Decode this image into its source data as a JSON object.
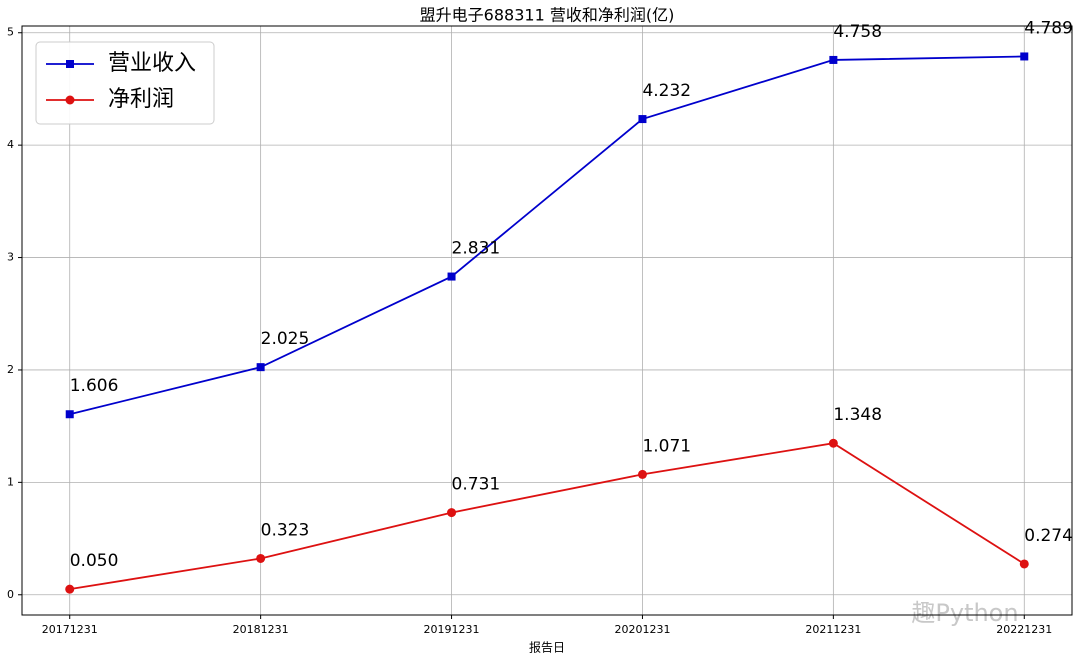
{
  "chart_data": {
    "type": "line",
    "title": "盟升电子688311 营收和净利润(亿)",
    "x_label": "报告日",
    "categories": [
      "20171231",
      "20181231",
      "20191231",
      "20201231",
      "20211231",
      "20221231"
    ],
    "series": [
      {
        "name": "营业收入",
        "color": "#0000cc",
        "marker": "square",
        "values": [
          1.606,
          2.025,
          2.831,
          4.232,
          4.758,
          4.789
        ],
        "value_labels": [
          "1.606",
          "2.025",
          "2.831",
          "4.232",
          "4.758",
          "4.789"
        ]
      },
      {
        "name": "净利润",
        "color": "#dd1111",
        "marker": "circle",
        "values": [
          0.05,
          0.323,
          0.731,
          1.071,
          1.348,
          0.274
        ],
        "value_labels": [
          "0.050",
          "0.323",
          "0.731",
          "1.071",
          "1.348",
          "0.274"
        ]
      }
    ],
    "ylim": [
      -0.18,
      5.06
    ],
    "yticks": [
      0,
      1,
      2,
      3,
      4,
      5
    ],
    "grid": true,
    "legend": "upper left",
    "watermark": "趣Python"
  }
}
